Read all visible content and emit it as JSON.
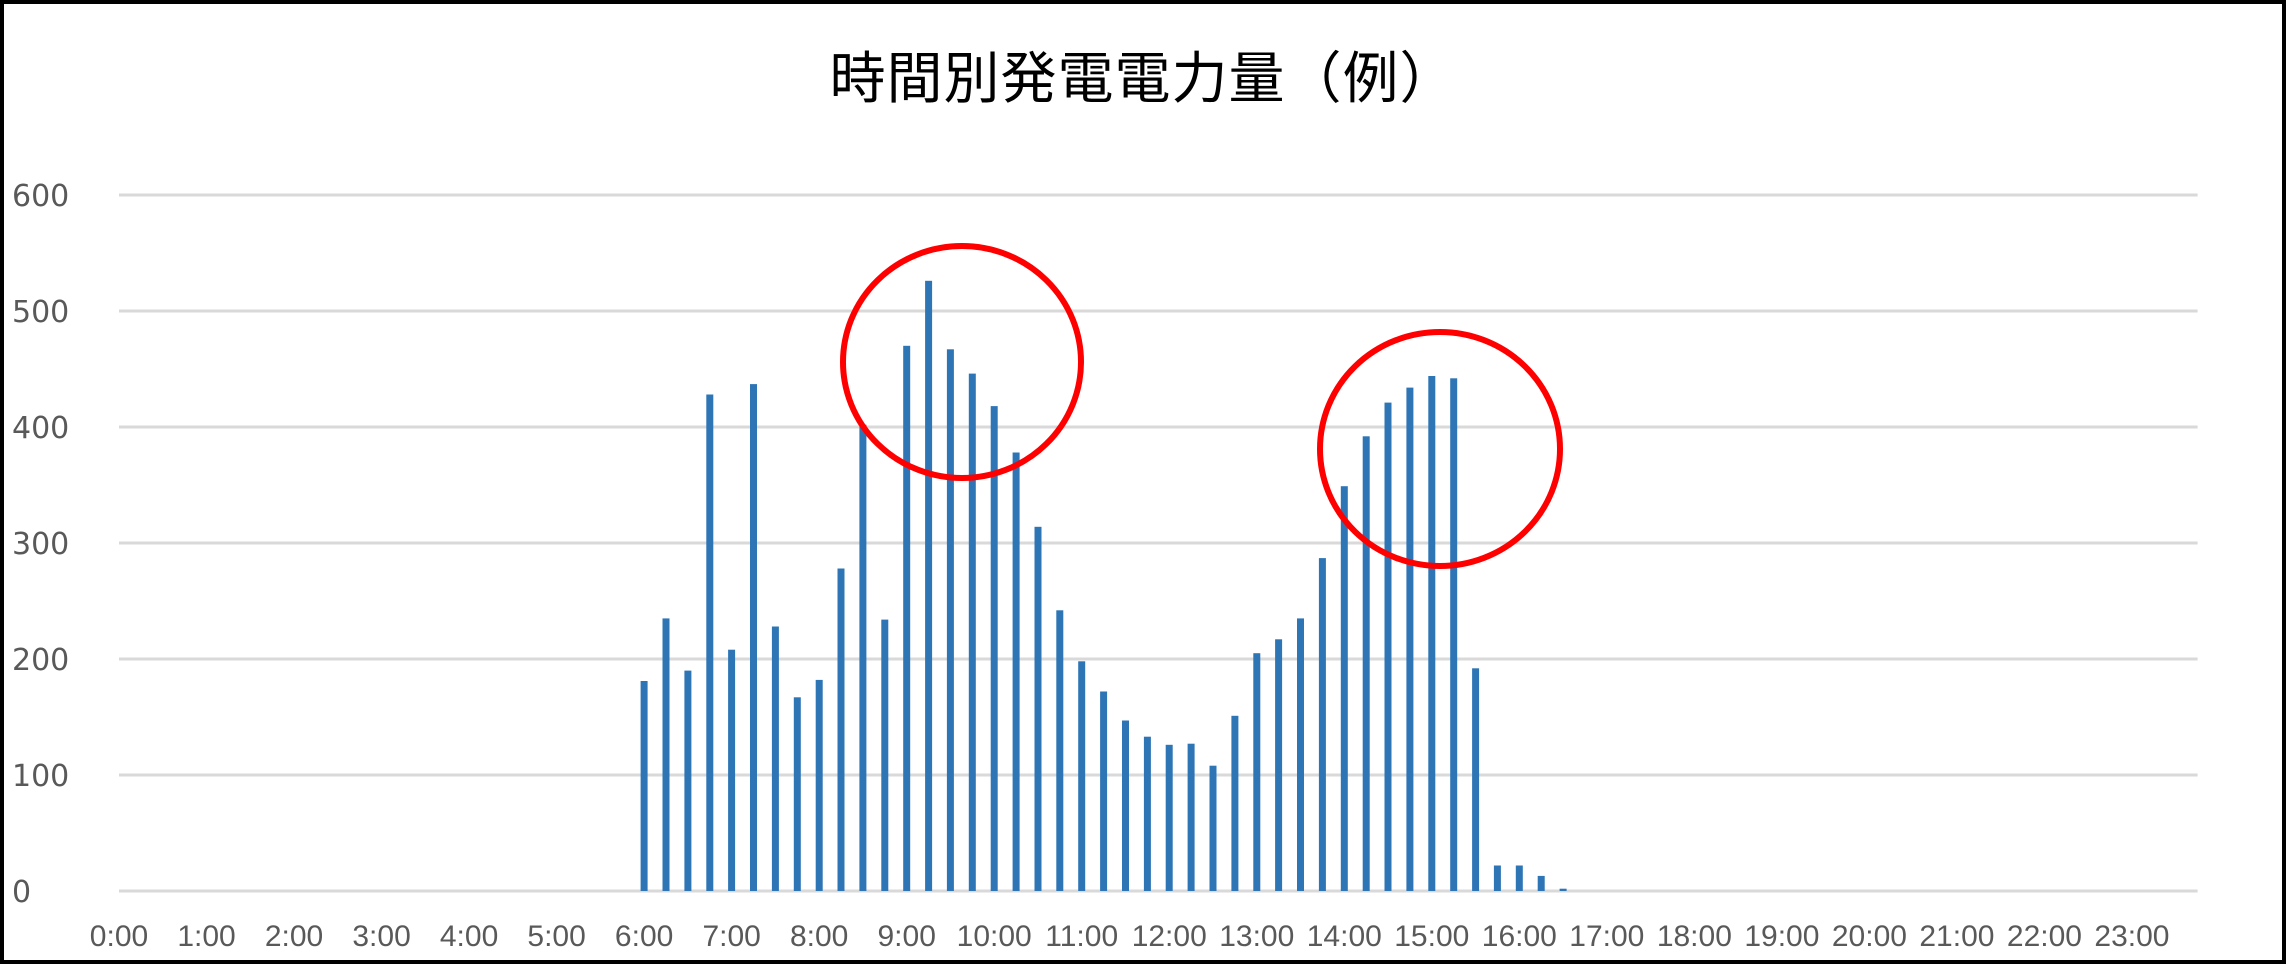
{
  "chart_data": {
    "type": "bar",
    "title": "時間別発電電力量（例）",
    "xlabel": "",
    "ylabel": "",
    "ylim": [
      0,
      600
    ],
    "yticks": [
      0,
      100,
      200,
      300,
      400,
      500,
      600
    ],
    "grid": true,
    "legend": null,
    "interval_minutes": 15,
    "x_tick_labels": [
      "0:00",
      "1:00",
      "2:00",
      "3:00",
      "4:00",
      "5:00",
      "6:00",
      "7:00",
      "8:00",
      "9:00",
      "10:00",
      "11:00",
      "12:00",
      "13:00",
      "14:00",
      "15:00",
      "16:00",
      "17:00",
      "18:00",
      "19:00",
      "20:00",
      "21:00",
      "22:00",
      "23:00"
    ],
    "categories": [
      "0:00",
      "0:15",
      "0:30",
      "0:45",
      "1:00",
      "1:15",
      "1:30",
      "1:45",
      "2:00",
      "2:15",
      "2:30",
      "2:45",
      "3:00",
      "3:15",
      "3:30",
      "3:45",
      "4:00",
      "4:15",
      "4:30",
      "4:45",
      "5:00",
      "5:15",
      "5:30",
      "5:45",
      "6:00",
      "6:15",
      "6:30",
      "6:45",
      "7:00",
      "7:15",
      "7:30",
      "7:45",
      "8:00",
      "8:15",
      "8:30",
      "8:45",
      "9:00",
      "9:15",
      "9:30",
      "9:45",
      "10:00",
      "10:15",
      "10:30",
      "10:45",
      "11:00",
      "11:15",
      "11:30",
      "11:45",
      "12:00",
      "12:15",
      "12:30",
      "12:45",
      "13:00",
      "13:15",
      "13:30",
      "13:45",
      "14:00",
      "14:15",
      "14:30",
      "14:45",
      "15:00",
      "15:15",
      "15:30",
      "15:45",
      "16:00",
      "16:15",
      "16:30",
      "16:45",
      "17:00",
      "17:15",
      "17:30",
      "17:45",
      "18:00",
      "18:15",
      "18:30",
      "18:45",
      "19:00",
      "19:15",
      "19:30",
      "19:45",
      "20:00",
      "20:15",
      "20:30",
      "20:45",
      "21:00",
      "21:15",
      "21:30",
      "21:45",
      "22:00",
      "22:15",
      "22:30",
      "22:45",
      "23:00",
      "23:15",
      "23:30",
      "23:45"
    ],
    "values": [
      0,
      0,
      0,
      0,
      0,
      0,
      0,
      0,
      0,
      0,
      0,
      0,
      0,
      0,
      0,
      0,
      0,
      0,
      0,
      0,
      0,
      0,
      0,
      0,
      181,
      235,
      190,
      428,
      208,
      437,
      228,
      167,
      182,
      278,
      402,
      234,
      470,
      526,
      467,
      446,
      418,
      378,
      314,
      242,
      198,
      172,
      147,
      133,
      126,
      127,
      108,
      151,
      205,
      217,
      235,
      287,
      349,
      392,
      421,
      434,
      444,
      442,
      192,
      22,
      22,
      13,
      2,
      0,
      0,
      0,
      0,
      0,
      0,
      0,
      0,
      0,
      0,
      0,
      0,
      0,
      0,
      0,
      0,
      0,
      0,
      0,
      0,
      0,
      0,
      0,
      0,
      0,
      0,
      0,
      0,
      0
    ],
    "bar_color": "#2e75b6",
    "annotations": [
      {
        "type": "ellipse",
        "color": "#ff0000",
        "label": "morning-peak-highlight",
        "around": [
          "9:00",
          "10:15"
        ]
      },
      {
        "type": "ellipse",
        "color": "#ff0000",
        "label": "afternoon-peak-highlight",
        "around": [
          "14:15",
          "15:15"
        ]
      }
    ]
  },
  "colors": {
    "gridline": "#d9d9d9",
    "axis_text": "#595959",
    "frame": "#000000",
    "highlight": "#ff0000"
  }
}
